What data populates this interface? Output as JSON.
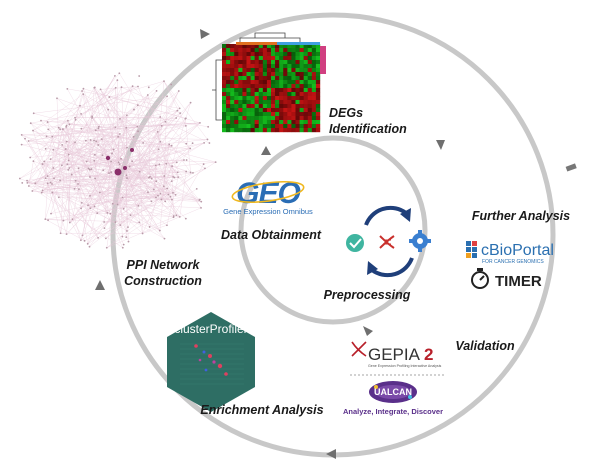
{
  "stages": {
    "data_obtainment": "Data Obtainment",
    "preprocessing": "Preprocessing",
    "degs_identification_line1": "DEGs",
    "degs_identification_line2": "Identification",
    "further_analysis": "Further Analysis",
    "ppi_line1": "PPI Network",
    "ppi_line2": "Construction",
    "validation": "Validation",
    "enrichment": "Enrichment Analysis"
  },
  "logos": {
    "geo_name": "GEO",
    "geo_caption": "Gene Expression Omnibus",
    "cbioportal_name": "cBioPortal",
    "cbioportal_caption": "FOR CANCER GENOMICS",
    "timer_name": "TIMER",
    "gepia_name": "GEPIA",
    "gepia_version": "2",
    "gepia_caption": "Gene Expression Profiling Interactive Analysis",
    "ualcan_name": "UALCAN",
    "ualcan_tagline": "Analyze, Integrate, Discover",
    "clusterprofiler_name": "clusterProfiler"
  },
  "colors": {
    "ring": "#c8c8c8",
    "arrow": "#6f6f6f",
    "geo_blue": "#2a6db5",
    "geo_yellow": "#f0b820",
    "cycle_navy": "#1f3f7a",
    "check_teal": "#3fb5a0",
    "dna_red": "#c9302c",
    "gear_blue": "#3a7fd0",
    "hex_green": "#2e6e64",
    "cbio_blue": "#2a6fb0",
    "gepia_red": "#b8202a",
    "ualcan_purple": "#5a2f8a"
  }
}
